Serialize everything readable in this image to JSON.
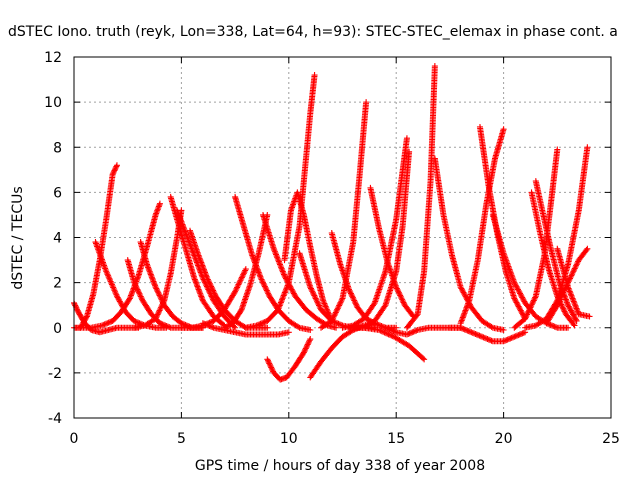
{
  "chart_data": {
    "type": "scatter",
    "title": "dSTEC Iono. truth (reyk, Lon=338, Lat=64, h=93): STEC-STEC_elemax in phase cont. a",
    "xlabel": "GPS time / hours of day 338 of year 2008",
    "ylabel": "dSTEC  / TECUs",
    "xlim": [
      0,
      25
    ],
    "ylim": [
      -4,
      12
    ],
    "xticks": [
      0,
      5,
      10,
      15,
      20,
      25
    ],
    "yticks": [
      -4,
      -2,
      0,
      2,
      4,
      6,
      8,
      10,
      12
    ],
    "grid": true,
    "marker": "+",
    "series_color": "#ff0000",
    "arcs": [
      {
        "x": [
          0.0,
          0.3,
          0.6,
          0.9,
          1.2,
          1.5,
          1.8,
          2.0
        ],
        "y": [
          0.0,
          0.0,
          0.5,
          1.5,
          3.0,
          4.8,
          6.8,
          7.2
        ]
      },
      {
        "x": [
          0.0,
          0.2,
          0.5,
          0.8,
          1.2,
          1.6,
          2.0,
          2.5,
          3.0
        ],
        "y": [
          1.1,
          0.7,
          0.2,
          -0.1,
          -0.2,
          -0.1,
          0.0,
          0.0,
          0.0
        ]
      },
      {
        "x": [
          0.3,
          0.8,
          1.3,
          1.8,
          2.2,
          2.6,
          3.0,
          3.4,
          3.8,
          4.0
        ],
        "y": [
          0.0,
          0.0,
          0.1,
          0.3,
          0.7,
          1.3,
          2.3,
          3.6,
          5.0,
          5.5
        ]
      },
      {
        "x": [
          1.0,
          1.5,
          2.0,
          2.4,
          2.8,
          3.3,
          3.8,
          4.3
        ],
        "y": [
          3.8,
          2.5,
          1.4,
          0.7,
          0.3,
          0.1,
          0.0,
          0.0
        ]
      },
      {
        "x": [
          2.5,
          2.8,
          3.2,
          3.6,
          4.0,
          4.5,
          5.0,
          5.5,
          6.0
        ],
        "y": [
          3.0,
          2.0,
          1.2,
          0.6,
          0.2,
          0.0,
          0.0,
          0.0,
          0.0
        ]
      },
      {
        "x": [
          2.8,
          3.3,
          3.8,
          4.2,
          4.5,
          4.8,
          5.0
        ],
        "y": [
          0.0,
          0.1,
          0.4,
          1.2,
          2.4,
          4.0,
          5.2
        ]
      },
      {
        "x": [
          3.1,
          3.4,
          3.8,
          4.2,
          4.6,
          5.0,
          5.5,
          6.0
        ],
        "y": [
          3.8,
          2.8,
          1.8,
          1.0,
          0.5,
          0.2,
          0.0,
          0.0
        ]
      },
      {
        "x": [
          4.5,
          4.8,
          5.2,
          5.6,
          6.0,
          6.5,
          7.0
        ],
        "y": [
          5.8,
          4.8,
          3.5,
          2.2,
          1.2,
          0.5,
          0.1
        ]
      },
      {
        "x": [
          4.8,
          5.2,
          5.6,
          6.0,
          6.5,
          7.0,
          7.5
        ],
        "y": [
          5.2,
          4.2,
          3.2,
          2.2,
          1.2,
          0.5,
          0.0
        ]
      },
      {
        "x": [
          5.0,
          5.5,
          6.0,
          6.5,
          7.0,
          7.5,
          8.0
        ],
        "y": [
          0.0,
          0.0,
          0.1,
          0.3,
          0.8,
          1.6,
          2.6
        ]
      },
      {
        "x": [
          5.4,
          5.8,
          6.2,
          6.6,
          7.0,
          7.5,
          8.0,
          8.5,
          9.0
        ],
        "y": [
          4.3,
          3.2,
          2.2,
          1.4,
          0.8,
          0.3,
          0.0,
          0.0,
          0.0
        ]
      },
      {
        "x": [
          6.0,
          6.5,
          7.0,
          7.5,
          8.0,
          8.5,
          9.0,
          9.5,
          10.0
        ],
        "y": [
          0.2,
          0.0,
          -0.1,
          -0.2,
          -0.3,
          -0.3,
          -0.3,
          -0.3,
          -0.2
        ]
      },
      {
        "x": [
          7.5,
          7.9,
          8.3,
          8.7,
          9.1,
          9.5,
          10.0,
          10.5,
          11.0
        ],
        "y": [
          5.8,
          4.5,
          3.2,
          2.2,
          1.4,
          0.8,
          0.3,
          0.0,
          -0.1
        ]
      },
      {
        "x": [
          7.0,
          7.4,
          7.8,
          8.2,
          8.6,
          9.0
        ],
        "y": [
          0.0,
          0.2,
          0.8,
          1.9,
          3.3,
          5.0
        ]
      },
      {
        "x": [
          8.0,
          8.5,
          9.0,
          9.5,
          10.0,
          10.5,
          11.0,
          11.2
        ],
        "y": [
          0.0,
          0.1,
          0.3,
          0.8,
          2.0,
          4.5,
          9.5,
          11.2
        ]
      },
      {
        "x": [
          8.8,
          9.3,
          9.8,
          10.3,
          10.8,
          11.3,
          11.8,
          12.2
        ],
        "y": [
          5.0,
          3.5,
          2.3,
          1.4,
          0.8,
          0.4,
          0.1,
          0.0
        ]
      },
      {
        "x": [
          9.0,
          9.3,
          9.6,
          9.9,
          10.3,
          10.7,
          11.0
        ],
        "y": [
          -1.4,
          -2.0,
          -2.3,
          -2.2,
          -1.7,
          -1.1,
          -0.5
        ]
      },
      {
        "x": [
          11.0,
          11.5,
          12.0,
          12.5,
          13.0,
          13.5,
          14.0
        ],
        "y": [
          -2.2,
          -1.5,
          -0.9,
          -0.4,
          -0.1,
          0.1,
          0.2
        ]
      },
      {
        "x": [
          9.8,
          10.1,
          10.4,
          10.7,
          11.0,
          11.3,
          11.6,
          12.0
        ],
        "y": [
          3.0,
          5.2,
          6.0,
          5.0,
          3.6,
          2.3,
          1.2,
          0.3
        ]
      },
      {
        "x": [
          10.5,
          11.0,
          11.5,
          12.0,
          12.5,
          13.0,
          13.5,
          14.0
        ],
        "y": [
          3.3,
          1.8,
          0.8,
          0.3,
          0.1,
          0.0,
          0.0,
          0.0
        ]
      },
      {
        "x": [
          11.5,
          12.0,
          12.5,
          13.0,
          13.3,
          13.6
        ],
        "y": [
          0.0,
          0.3,
          1.3,
          3.8,
          6.8,
          10.0
        ]
      },
      {
        "x": [
          12.0,
          12.4,
          12.8,
          13.2,
          13.6,
          14.0,
          14.5,
          15.0
        ],
        "y": [
          4.2,
          2.8,
          1.7,
          0.9,
          0.4,
          0.2,
          0.0,
          0.0
        ]
      },
      {
        "x": [
          12.5,
          13.0,
          13.5,
          14.0,
          14.5,
          15.0,
          15.5
        ],
        "y": [
          0.0,
          0.1,
          0.4,
          1.1,
          2.5,
          4.8,
          8.4
        ]
      },
      {
        "x": [
          13.8,
          14.2,
          14.6,
          15.0,
          15.4,
          15.8
        ],
        "y": [
          6.2,
          4.4,
          2.9,
          1.8,
          1.0,
          0.5
        ]
      },
      {
        "x": [
          13.5,
          14.0,
          14.5,
          15.0,
          15.3,
          15.6
        ],
        "y": [
          0.0,
          0.3,
          1.0,
          2.5,
          4.5,
          7.8
        ]
      },
      {
        "x": [
          12.8,
          13.5,
          14.2,
          14.9,
          15.6,
          16.3
        ],
        "y": [
          0.0,
          0.0,
          -0.1,
          -0.4,
          -0.8,
          -1.4
        ]
      },
      {
        "x": [
          14.5,
          15.0,
          15.5,
          16.0,
          16.5,
          17.0,
          17.5,
          18.0
        ],
        "y": [
          0.0,
          -0.2,
          -0.3,
          -0.1,
          0.0,
          0.0,
          0.0,
          0.0
        ]
      },
      {
        "x": [
          15.5,
          16.0,
          16.3,
          16.6,
          16.8
        ],
        "y": [
          0.0,
          0.6,
          2.5,
          6.5,
          11.6
        ]
      },
      {
        "x": [
          16.8,
          17.2,
          17.6,
          18.0,
          18.5,
          19.0,
          19.5,
          20.0
        ],
        "y": [
          7.5,
          5.0,
          3.2,
          1.8,
          0.9,
          0.3,
          0.0,
          -0.1
        ]
      },
      {
        "x": [
          17.5,
          18.0,
          18.5,
          19.0,
          19.5,
          20.0,
          20.5,
          21.0
        ],
        "y": [
          0.0,
          0.0,
          -0.2,
          -0.4,
          -0.6,
          -0.6,
          -0.4,
          -0.2
        ]
      },
      {
        "x": [
          18.0,
          18.4,
          18.8,
          19.2,
          19.6,
          20.0
        ],
        "y": [
          0.2,
          1.2,
          3.0,
          5.5,
          7.5,
          8.8
        ]
      },
      {
        "x": [
          18.9,
          19.3,
          19.7,
          20.1,
          20.5,
          21.0
        ],
        "y": [
          8.9,
          6.3,
          4.2,
          2.5,
          1.3,
          0.4
        ]
      },
      {
        "x": [
          19.5,
          20.0,
          20.5,
          21.0,
          21.5,
          22.0,
          22.5,
          23.0
        ],
        "y": [
          5.0,
          3.3,
          2.0,
          1.1,
          0.5,
          0.2,
          0.0,
          0.0
        ]
      },
      {
        "x": [
          20.5,
          21.0,
          21.5,
          21.9,
          22.2,
          22.5
        ],
        "y": [
          0.0,
          0.4,
          1.4,
          3.2,
          5.5,
          7.9
        ]
      },
      {
        "x": [
          21.5,
          21.8,
          22.2,
          22.6,
          23.0,
          23.4
        ],
        "y": [
          6.5,
          5.2,
          3.5,
          2.0,
          1.0,
          0.3
        ]
      },
      {
        "x": [
          21.0,
          21.5,
          22.0,
          22.5,
          23.0,
          23.5,
          23.9
        ],
        "y": [
          0.0,
          0.1,
          0.4,
          1.2,
          2.8,
          5.2,
          8.0
        ]
      },
      {
        "x": [
          22.0,
          22.5,
          23.0,
          23.5,
          23.9
        ],
        "y": [
          0.2,
          1.0,
          2.0,
          3.0,
          3.5
        ]
      },
      {
        "x": [
          22.5,
          23.0,
          23.5,
          24.0
        ],
        "y": [
          3.5,
          1.8,
          0.6,
          0.5
        ]
      },
      {
        "x": [
          21.3,
          21.7,
          22.1,
          22.5,
          22.9,
          23.3
        ],
        "y": [
          6.0,
          4.2,
          2.6,
          1.4,
          0.6,
          0.1
        ]
      }
    ]
  }
}
